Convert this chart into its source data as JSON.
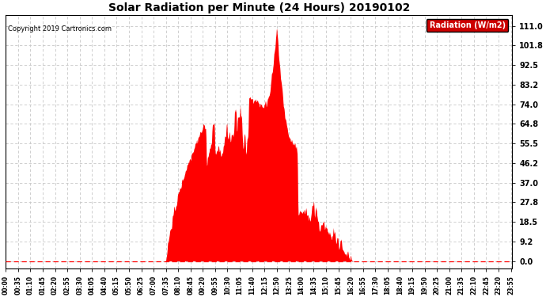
{
  "title": "Solar Radiation per Minute (24 Hours) 20190102",
  "copyright_text": "Copyright 2019 Cartronics.com",
  "legend_label": "Radiation (W/m2)",
  "fill_color": "#FF0000",
  "dashed_line_color": "#FF0000",
  "background_color": "#FFFFFF",
  "grid_color": "#C8C8C8",
  "yticks": [
    0.0,
    9.2,
    18.5,
    27.8,
    37.0,
    46.2,
    55.5,
    64.8,
    74.0,
    83.2,
    92.5,
    101.8,
    111.0
  ],
  "ymax": 116.0,
  "ymin": -3.5,
  "total_minutes": 1440,
  "sunrise_minute": 455,
  "sunset_minute": 985,
  "peak_minute": 770,
  "xtick_step": 35,
  "legend_facecolor": "#CC0000",
  "legend_textcolor": "#FFFFFF",
  "figwidth": 6.9,
  "figheight": 3.75,
  "dpi": 100
}
